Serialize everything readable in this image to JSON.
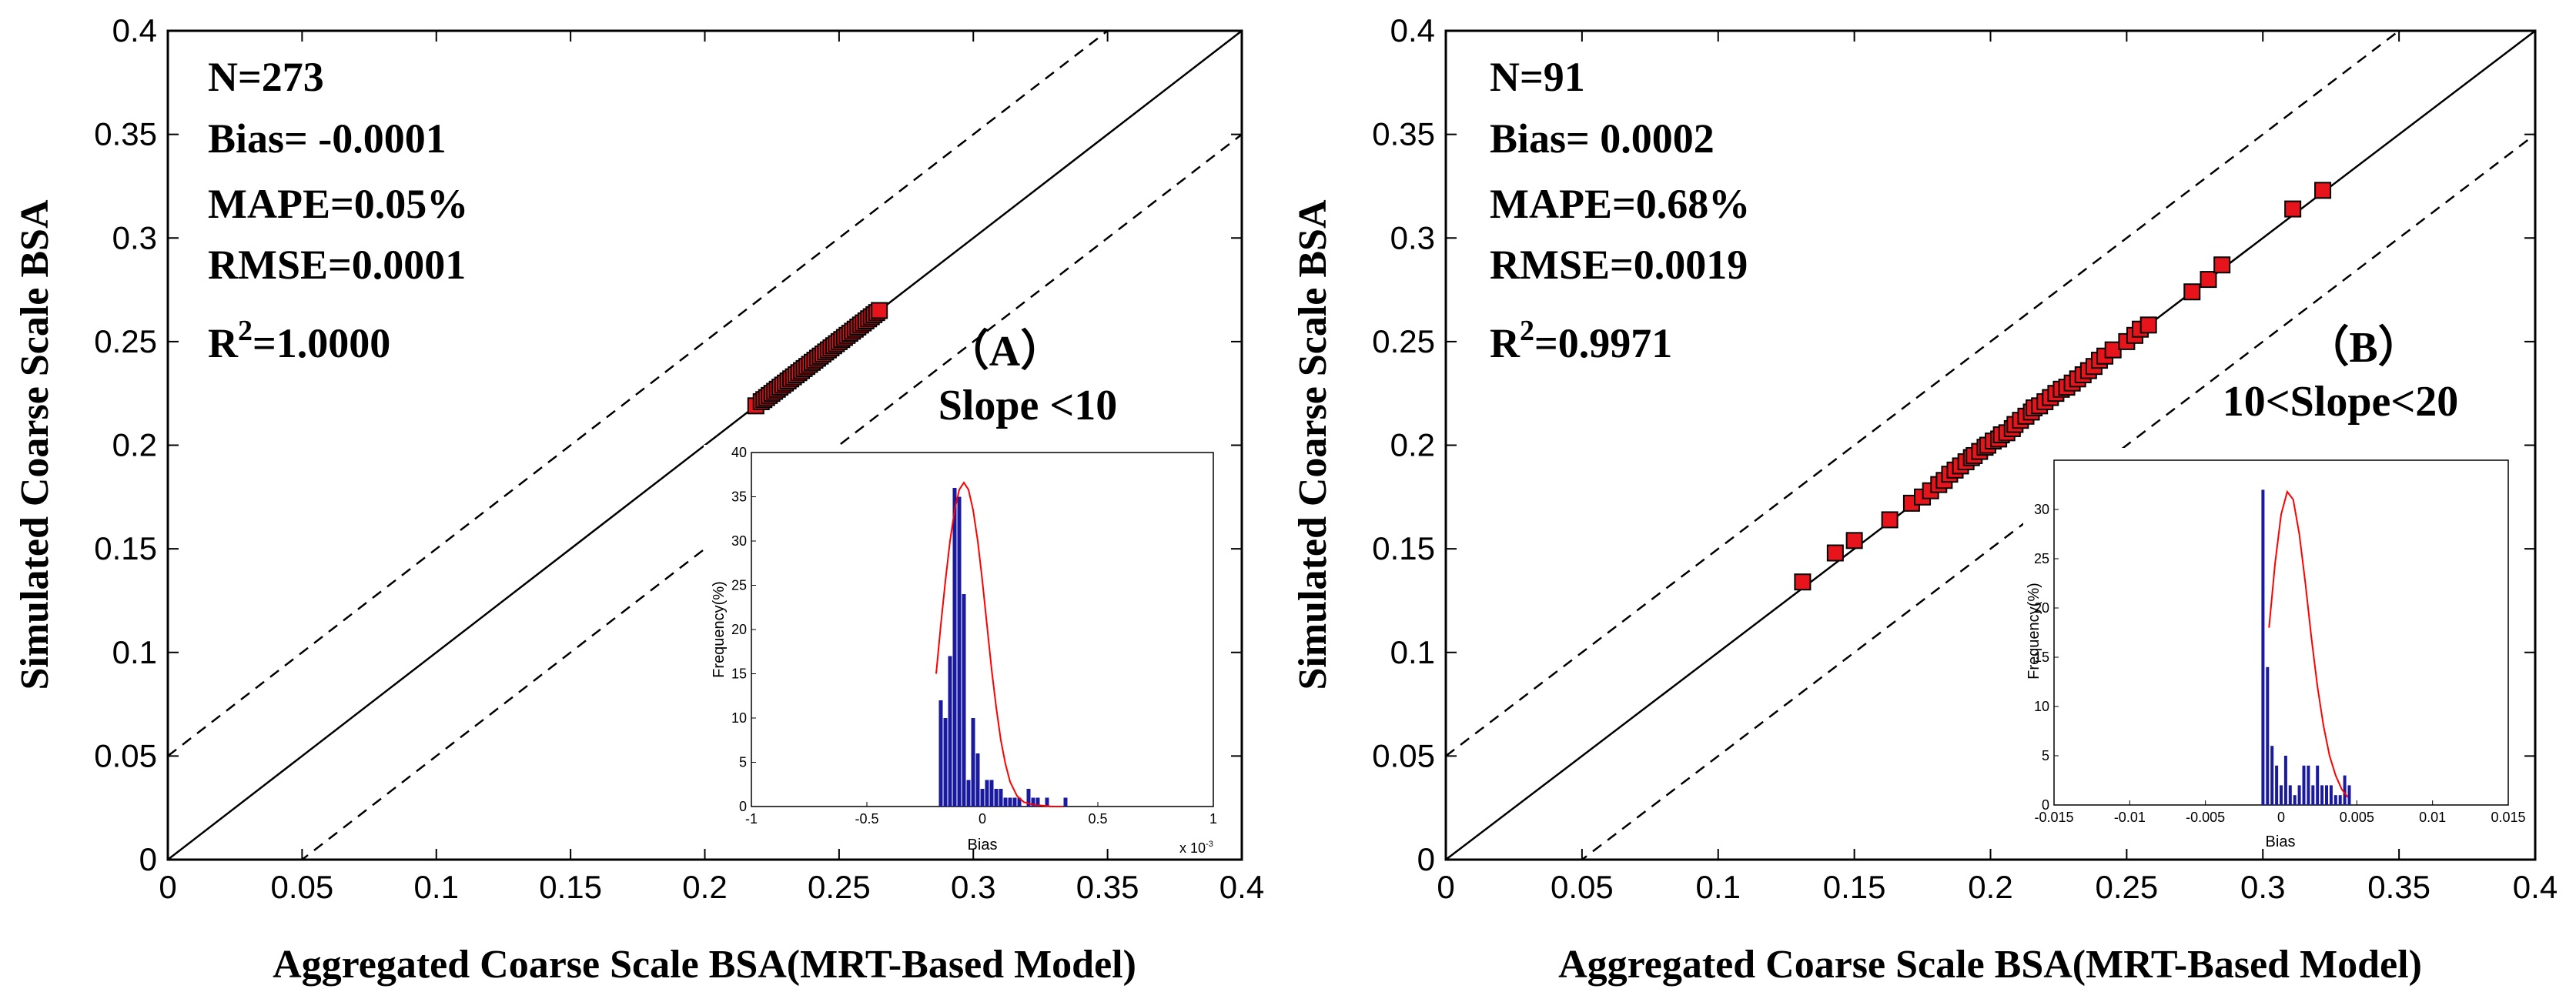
{
  "chart_data": [
    {
      "type": "scatter",
      "panel": "A",
      "panel_label": "（A）",
      "condition": "Slope <10",
      "xlabel": "Aggregated Coarse Scale BSA(MRT-Based Model)",
      "ylabel": "Simulated Coarse Scale BSA",
      "xlim": [
        0,
        0.4
      ],
      "ylim": [
        0,
        0.4
      ],
      "xticks": [
        "0",
        "0.05",
        "0.1",
        "0.15",
        "0.2",
        "0.25",
        "0.3",
        "0.35",
        "0.4"
      ],
      "yticks": [
        "0",
        "0.05",
        "0.1",
        "0.15",
        "0.2",
        "0.25",
        "0.3",
        "0.35",
        "0.4"
      ],
      "stats": {
        "n": "N=273",
        "bias": "Bias= -0.0001",
        "mape": "MAPE=0.05%",
        "rmse": "RMSE=0.0001",
        "r2_prefix": "R",
        "r2_sup": "2",
        "r2_value": "=1.0000"
      },
      "reference_lines": {
        "one_to_one": [
          1,
          0
        ],
        "upper": [
          1,
          0.05
        ],
        "lower": [
          1,
          -0.05
        ]
      },
      "points": {
        "x": [
          0.219,
          0.221,
          0.222,
          0.223,
          0.224,
          0.225,
          0.226,
          0.227,
          0.228,
          0.229,
          0.23,
          0.231,
          0.232,
          0.233,
          0.234,
          0.235,
          0.236,
          0.237,
          0.238,
          0.239,
          0.24,
          0.241,
          0.242,
          0.243,
          0.244,
          0.245,
          0.246,
          0.247,
          0.248,
          0.249,
          0.25,
          0.251,
          0.252,
          0.253,
          0.254,
          0.255,
          0.256,
          0.257,
          0.258,
          0.259,
          0.26,
          0.261,
          0.262,
          0.263,
          0.264,
          0.265
        ],
        "y": [
          0.219,
          0.221,
          0.222,
          0.223,
          0.224,
          0.225,
          0.226,
          0.227,
          0.228,
          0.229,
          0.23,
          0.231,
          0.232,
          0.233,
          0.234,
          0.235,
          0.236,
          0.237,
          0.238,
          0.239,
          0.24,
          0.241,
          0.242,
          0.243,
          0.244,
          0.245,
          0.246,
          0.247,
          0.248,
          0.249,
          0.25,
          0.251,
          0.252,
          0.253,
          0.254,
          0.255,
          0.256,
          0.257,
          0.258,
          0.259,
          0.26,
          0.261,
          0.262,
          0.263,
          0.264,
          0.265
        ]
      },
      "inset": {
        "type": "bar",
        "xlabel": "Bias",
        "ylabel": "Frequency(%)",
        "xlim": [
          -1,
          1
        ],
        "ylim": [
          0,
          40
        ],
        "xticks": [
          -1,
          -0.5,
          0,
          0.5,
          1
        ],
        "xtick_labels": [
          "-1",
          "-0.5",
          "0",
          "0.5",
          "1"
        ],
        "yticks": [
          0,
          5,
          10,
          15,
          20,
          25,
          30,
          35,
          40
        ],
        "x_exponent": "x 10",
        "x_exponent_power": "-3",
        "bars": {
          "x": [
            -0.18,
            -0.16,
            -0.14,
            -0.12,
            -0.1,
            -0.08,
            -0.06,
            -0.04,
            -0.02,
            0.0,
            0.02,
            0.04,
            0.06,
            0.08,
            0.1,
            0.12,
            0.14,
            0.16,
            0.2,
            0.22,
            0.24,
            0.28,
            0.36
          ],
          "values": [
            12,
            10,
            17,
            36,
            35,
            24,
            3,
            10,
            6,
            2,
            3,
            3,
            2,
            2,
            1,
            1,
            1,
            1,
            2,
            1,
            1,
            1,
            1
          ]
        },
        "fit_curve": {
          "x": [
            -0.2,
            -0.18,
            -0.16,
            -0.14,
            -0.12,
            -0.1,
            -0.08,
            -0.06,
            -0.04,
            -0.02,
            0,
            0.02,
            0.04,
            0.06,
            0.08,
            0.1,
            0.12,
            0.15,
            0.18,
            0.22,
            0.26,
            0.3,
            0.35
          ],
          "y": [
            15,
            20.5,
            25.5,
            30,
            33.5,
            35.8,
            36.6,
            35.8,
            33.5,
            30,
            25.5,
            20.5,
            15.5,
            11.2,
            7.5,
            4.8,
            2.8,
            1.2,
            0.5,
            0.2,
            0.1,
            0,
            0
          ]
        }
      }
    },
    {
      "type": "scatter",
      "panel": "B",
      "panel_label": "（B）",
      "condition": "10<Slope<20",
      "xlabel": "Aggregated Coarse Scale BSA(MRT-Based Model)",
      "ylabel": "Simulated Coarse Scale BSA",
      "xlim": [
        0,
        0.4
      ],
      "ylim": [
        0,
        0.4
      ],
      "xticks": [
        "0",
        "0.05",
        "0.1",
        "0.15",
        "0.2",
        "0.25",
        "0.3",
        "0.35",
        "0.4"
      ],
      "yticks": [
        "0",
        "0.05",
        "0.1",
        "0.15",
        "0.2",
        "0.25",
        "0.3",
        "0.35",
        "0.4"
      ],
      "stats": {
        "n": "N=91",
        "bias": "Bias= 0.0002",
        "mape": "MAPE=0.68%",
        "rmse": "RMSE=0.0019",
        "r2_prefix": "R",
        "r2_sup": "2",
        "r2_value": "=0.9971"
      },
      "reference_lines": {
        "one_to_one": [
          1,
          0
        ],
        "upper": [
          1,
          0.05
        ],
        "lower": [
          1,
          -0.05
        ]
      },
      "points": {
        "x": [
          0.131,
          0.143,
          0.15,
          0.163,
          0.171,
          0.175,
          0.178,
          0.181,
          0.183,
          0.185,
          0.187,
          0.189,
          0.191,
          0.193,
          0.194,
          0.196,
          0.198,
          0.199,
          0.201,
          0.203,
          0.204,
          0.206,
          0.208,
          0.209,
          0.211,
          0.213,
          0.215,
          0.216,
          0.218,
          0.22,
          0.222,
          0.224,
          0.226,
          0.228,
          0.23,
          0.232,
          0.234,
          0.236,
          0.238,
          0.24,
          0.242,
          0.245,
          0.25,
          0.253,
          0.255,
          0.258,
          0.274,
          0.28,
          0.285,
          0.311,
          0.322
        ],
        "y": [
          0.134,
          0.148,
          0.154,
          0.164,
          0.172,
          0.175,
          0.178,
          0.181,
          0.183,
          0.186,
          0.188,
          0.19,
          0.192,
          0.194,
          0.195,
          0.197,
          0.199,
          0.2,
          0.202,
          0.203,
          0.205,
          0.206,
          0.208,
          0.21,
          0.212,
          0.214,
          0.216,
          0.218,
          0.219,
          0.221,
          0.223,
          0.225,
          0.227,
          0.228,
          0.23,
          0.232,
          0.234,
          0.236,
          0.238,
          0.241,
          0.243,
          0.246,
          0.25,
          0.253,
          0.256,
          0.258,
          0.274,
          0.28,
          0.287,
          0.314,
          0.323
        ]
      },
      "inset": {
        "type": "bar",
        "xlabel": "Bias",
        "ylabel": "Frequency(%)",
        "xlim": [
          -0.015,
          0.015
        ],
        "ylim": [
          0,
          35
        ],
        "xticks": [
          -0.015,
          -0.01,
          -0.005,
          0,
          0.005,
          0.01,
          0.015
        ],
        "xtick_labels": [
          "-0.015",
          "-0.01",
          "-0.005",
          "0",
          "0.005",
          "0.01",
          "0.015"
        ],
        "yticks": [
          0,
          5,
          10,
          15,
          20,
          25,
          30
        ],
        "bars": {
          "x": [
            -0.0012,
            -0.0009,
            -0.0006,
            -0.0003,
            0.0,
            0.0003,
            0.0006,
            0.0009,
            0.0012,
            0.0015,
            0.0018,
            0.0021,
            0.0024,
            0.0027,
            0.003,
            0.0033,
            0.0036,
            0.0039,
            0.0042,
            0.0045
          ],
          "values": [
            32,
            14,
            6,
            4,
            2,
            5,
            2,
            1,
            2,
            4,
            4,
            2,
            4,
            2,
            2,
            2,
            1,
            1,
            3,
            2
          ]
        },
        "fit_curve": {
          "x": [
            -0.0008,
            -0.0004,
            0.0,
            0.0004,
            0.0008,
            0.0012,
            0.0016,
            0.002,
            0.0024,
            0.0028,
            0.0032,
            0.0036,
            0.004,
            0.0044
          ],
          "y": [
            18,
            24.5,
            29.5,
            31.8,
            31,
            27.5,
            22.5,
            17,
            12,
            8,
            5,
            3,
            1.6,
            0.8
          ]
        }
      }
    }
  ]
}
